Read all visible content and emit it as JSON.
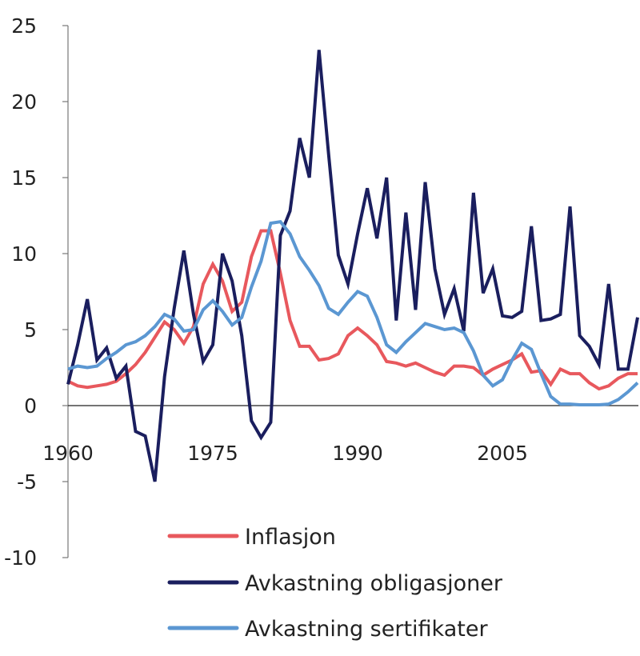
{
  "chart_data": {
    "type": "line",
    "title": "",
    "xlabel": "",
    "ylabel": "",
    "xlim": [
      1960,
      2019
    ],
    "ylim": [
      -10,
      25
    ],
    "y_ticks": [
      "25",
      "20",
      "15",
      "10",
      "5",
      "0",
      "-5",
      "-10"
    ],
    "y_tick_values": [
      25,
      20,
      15,
      10,
      5,
      0,
      -5,
      -10
    ],
    "x_ticks": [
      "1960",
      "1975",
      "1990",
      "2005"
    ],
    "x_tick_values": [
      1960,
      1975,
      1990,
      2005
    ],
    "grid": false,
    "legend_placement": "bottom",
    "series": [
      {
        "name": "Inflasjon",
        "color": "#e8585d",
        "x": [
          1960,
          1961,
          1962,
          1963,
          1964,
          1965,
          1966,
          1967,
          1968,
          1969,
          1970,
          1971,
          1972,
          1973,
          1974,
          1975,
          1976,
          1977,
          1978,
          1979,
          1980,
          1981,
          1982,
          1983,
          1984,
          1985,
          1986,
          1987,
          1988,
          1989,
          1990,
          1991,
          1992,
          1993,
          1994,
          1995,
          1996,
          1997,
          1998,
          1999,
          2000,
          2001,
          2002,
          2003,
          2004,
          2005,
          2006,
          2007,
          2008,
          2009,
          2010,
          2011,
          2012,
          2013,
          2014,
          2015,
          2016,
          2017,
          2018,
          2019
        ],
        "values": [
          1.6,
          1.3,
          1.2,
          1.3,
          1.4,
          1.6,
          2.1,
          2.7,
          3.5,
          4.5,
          5.5,
          5.0,
          4.1,
          5.2,
          8.0,
          9.3,
          8.2,
          6.2,
          6.8,
          9.8,
          11.5,
          11.5,
          8.7,
          5.6,
          3.9,
          3.9,
          3.0,
          3.1,
          3.4,
          4.6,
          5.1,
          4.6,
          4.0,
          2.9,
          2.8,
          2.6,
          2.8,
          2.5,
          2.2,
          2.0,
          2.6,
          2.6,
          2.5,
          2.0,
          2.4,
          2.7,
          3.0,
          3.4,
          2.2,
          2.3,
          1.4,
          2.4,
          2.1,
          2.1,
          1.5,
          1.1,
          1.3,
          1.8,
          2.1,
          2.1
        ]
      },
      {
        "name": "Avkastning obligasjoner",
        "color": "#1a1e5e",
        "x": [
          1960,
          1961,
          1962,
          1963,
          1964,
          1965,
          1966,
          1967,
          1968,
          1969,
          1970,
          1971,
          1972,
          1973,
          1974,
          1975,
          1976,
          1977,
          1978,
          1979,
          1980,
          1981,
          1982,
          1983,
          1984,
          1985,
          1986,
          1987,
          1988,
          1989,
          1990,
          1991,
          1992,
          1993,
          1994,
          1995,
          1996,
          1997,
          1998,
          1999,
          2000,
          2001,
          2002,
          2003,
          2004,
          2005,
          2006,
          2007,
          2008,
          2009,
          2010,
          2011,
          2012,
          2013,
          2014,
          2015,
          2016,
          2017,
          2018,
          2019
        ],
        "values": [
          1.4,
          4.0,
          7.0,
          3.0,
          3.8,
          1.8,
          2.6,
          -1.7,
          -2.0,
          -5.0,
          1.9,
          6.4,
          10.2,
          6.0,
          2.9,
          4.0,
          10.0,
          8.2,
          4.6,
          -1.0,
          -2.1,
          -1.1,
          11.2,
          12.8,
          17.6,
          15.0,
          23.4,
          16.5,
          9.9,
          8.0,
          11.3,
          14.3,
          11.0,
          15.0,
          5.6,
          12.7,
          6.3,
          14.7,
          9.0,
          6.0,
          7.7,
          4.9,
          14.0,
          7.4,
          9.0,
          5.9,
          5.8,
          6.2,
          11.8,
          5.6,
          5.7,
          6.0,
          13.1,
          4.6,
          3.9,
          2.7,
          8.0,
          2.4,
          2.4,
          5.8
        ]
      },
      {
        "name": "Avkastning sertifikater",
        "color": "#5b97d2",
        "x": [
          1960,
          1961,
          1962,
          1963,
          1964,
          1965,
          1966,
          1967,
          1968,
          1969,
          1970,
          1971,
          1972,
          1973,
          1974,
          1975,
          1976,
          1977,
          1978,
          1979,
          1980,
          1981,
          1982,
          1983,
          1984,
          1985,
          1986,
          1987,
          1988,
          1989,
          1990,
          1991,
          1992,
          1993,
          1994,
          1995,
          1996,
          1997,
          1998,
          1999,
          2000,
          2001,
          2002,
          2003,
          2004,
          2005,
          2006,
          2007,
          2008,
          2009,
          2010,
          2011,
          2012,
          2013,
          2014,
          2015,
          2016,
          2017,
          2018,
          2019
        ],
        "values": [
          2.4,
          2.6,
          2.5,
          2.6,
          3.1,
          3.5,
          4.0,
          4.2,
          4.6,
          5.2,
          6.0,
          5.7,
          4.9,
          5.0,
          6.3,
          6.9,
          6.2,
          5.3,
          5.8,
          7.8,
          9.5,
          12.0,
          12.1,
          11.3,
          9.8,
          8.9,
          7.9,
          6.4,
          6.0,
          6.8,
          7.5,
          7.2,
          5.8,
          4.0,
          3.5,
          4.2,
          4.8,
          5.4,
          5.2,
          5.0,
          5.1,
          4.8,
          3.6,
          2.0,
          1.3,
          1.7,
          3.0,
          4.1,
          3.7,
          2.1,
          0.6,
          0.1,
          0.1,
          0.05,
          0.05,
          0.05,
          0.1,
          0.4,
          0.9,
          1.5
        ]
      }
    ]
  }
}
